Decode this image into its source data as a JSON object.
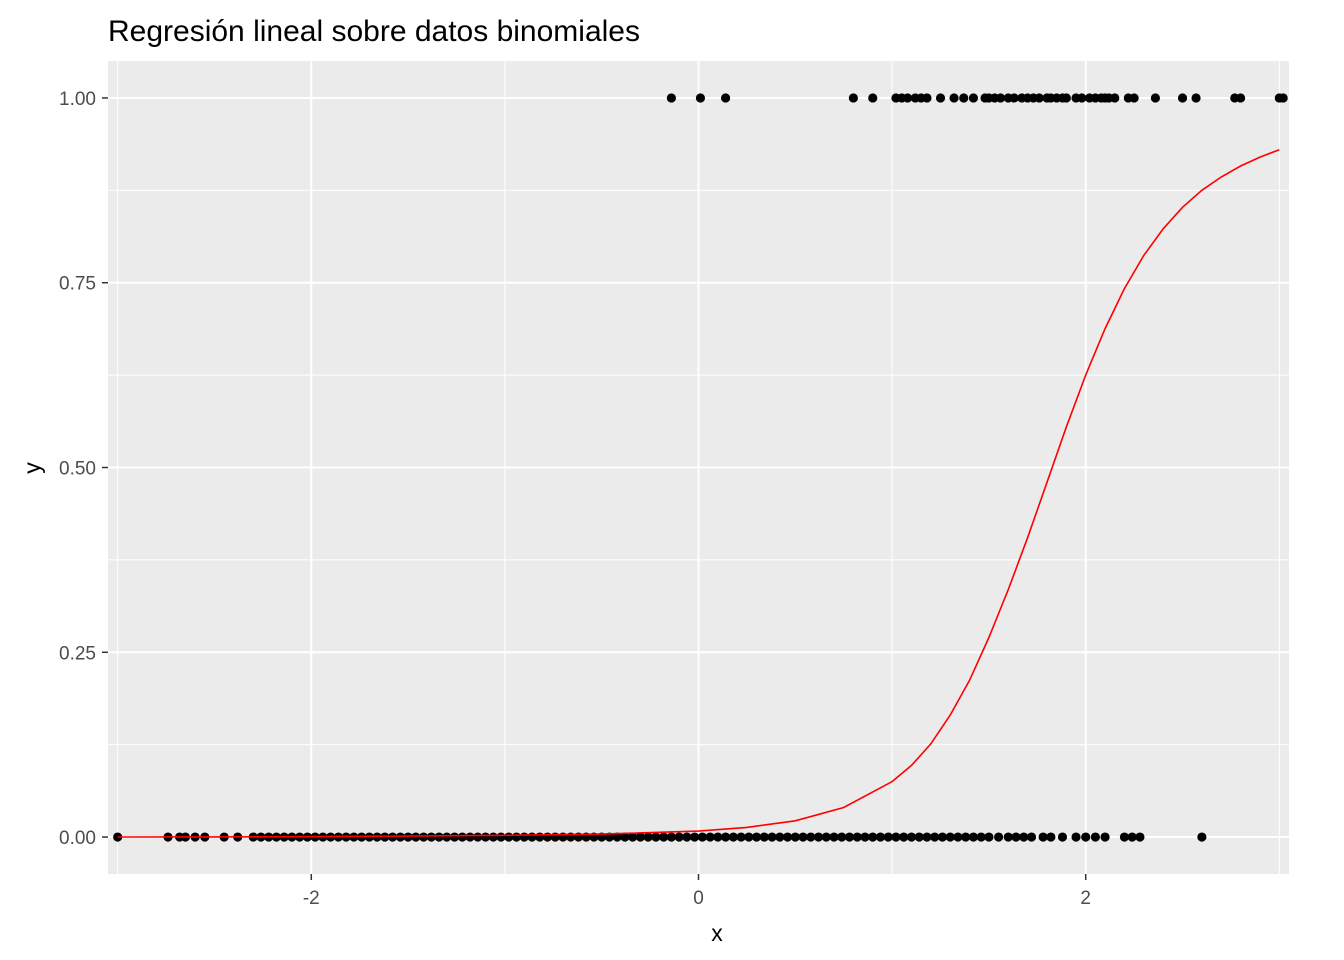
{
  "chart_data": {
    "type": "scatter",
    "title": "Regresión lineal sobre datos binomiales",
    "xlabel": "x",
    "ylabel": "y",
    "xlim": [
      -3.05,
      3.05
    ],
    "ylim": [
      -0.05,
      1.05
    ],
    "x_ticks": [
      -2,
      0,
      2
    ],
    "x_tick_labels": [
      "-2",
      "0",
      "2"
    ],
    "y_ticks": [
      0,
      0.25,
      0.5,
      0.75,
      1
    ],
    "y_tick_labels": [
      "0.00",
      "0.25",
      "0.50",
      "0.75",
      "1.00"
    ],
    "grid": true,
    "legend": "none",
    "colors": {
      "panel_background": "#ebebeb",
      "grid": "#ffffff",
      "points": "#000000",
      "fit_line": "#ff0000"
    },
    "series": [
      {
        "kind": "points",
        "y": 1,
        "x": [
          -0.14,
          0.01,
          0.14,
          0.8,
          0.9,
          1.02,
          1.05,
          1.08,
          1.12,
          1.15,
          1.18,
          1.25,
          1.32,
          1.37,
          1.42,
          1.48,
          1.5,
          1.53,
          1.56,
          1.6,
          1.63,
          1.67,
          1.7,
          1.73,
          1.76,
          1.8,
          1.82,
          1.85,
          1.88,
          1.9,
          1.95,
          1.98,
          2.02,
          2.05,
          2.08,
          2.1,
          2.12,
          2.15,
          2.22,
          2.25,
          2.36,
          2.5,
          2.57,
          2.77,
          2.8,
          3.0,
          3.02
        ]
      },
      {
        "kind": "points",
        "y": 0,
        "x": [
          -3.0,
          -2.74,
          -2.68,
          -2.65,
          -2.6,
          -2.55,
          -2.45,
          -2.38,
          -2.3,
          -2.26,
          -2.22,
          -2.18,
          -2.14,
          -2.1,
          -2.06,
          -2.02,
          -1.98,
          -1.94,
          -1.9,
          -1.86,
          -1.82,
          -1.78,
          -1.74,
          -1.7,
          -1.66,
          -1.62,
          -1.58,
          -1.54,
          -1.5,
          -1.46,
          -1.42,
          -1.38,
          -1.34,
          -1.3,
          -1.26,
          -1.22,
          -1.18,
          -1.14,
          -1.1,
          -1.06,
          -1.02,
          -0.98,
          -0.94,
          -0.9,
          -0.86,
          -0.82,
          -0.78,
          -0.74,
          -0.7,
          -0.66,
          -0.62,
          -0.58,
          -0.54,
          -0.5,
          -0.46,
          -0.42,
          -0.38,
          -0.34,
          -0.3,
          -0.26,
          -0.22,
          -0.18,
          -0.14,
          -0.1,
          -0.06,
          -0.02,
          0.02,
          0.06,
          0.1,
          0.14,
          0.18,
          0.22,
          0.26,
          0.3,
          0.34,
          0.38,
          0.42,
          0.46,
          0.5,
          0.54,
          0.58,
          0.62,
          0.66,
          0.7,
          0.74,
          0.78,
          0.82,
          0.86,
          0.9,
          0.94,
          0.98,
          1.02,
          1.06,
          1.1,
          1.14,
          1.18,
          1.22,
          1.26,
          1.3,
          1.34,
          1.38,
          1.42,
          1.46,
          1.5,
          1.55,
          1.6,
          1.64,
          1.68,
          1.72,
          1.78,
          1.82,
          1.88,
          1.95,
          2.0,
          2.05,
          2.1,
          2.2,
          2.24,
          2.28,
          2.6
        ]
      },
      {
        "kind": "line",
        "name": "",
        "x": [
          -3.0,
          -2.5,
          -2.0,
          -1.5,
          -1.0,
          -0.5,
          0.0,
          0.25,
          0.5,
          0.75,
          1.0,
          1.1,
          1.2,
          1.3,
          1.4,
          1.5,
          1.6,
          1.7,
          1.8,
          1.9,
          2.0,
          2.1,
          2.2,
          2.3,
          2.4,
          2.5,
          2.6,
          2.7,
          2.8,
          2.9,
          3.0
        ],
        "y": [
          0.0001,
          0.0002,
          0.0006,
          0.0013,
          0.0023,
          0.004,
          0.008,
          0.013,
          0.022,
          0.04,
          0.075,
          0.097,
          0.126,
          0.165,
          0.212,
          0.27,
          0.335,
          0.405,
          0.48,
          0.555,
          0.625,
          0.688,
          0.742,
          0.787,
          0.823,
          0.852,
          0.875,
          0.893,
          0.908,
          0.92,
          0.93
        ]
      }
    ]
  }
}
